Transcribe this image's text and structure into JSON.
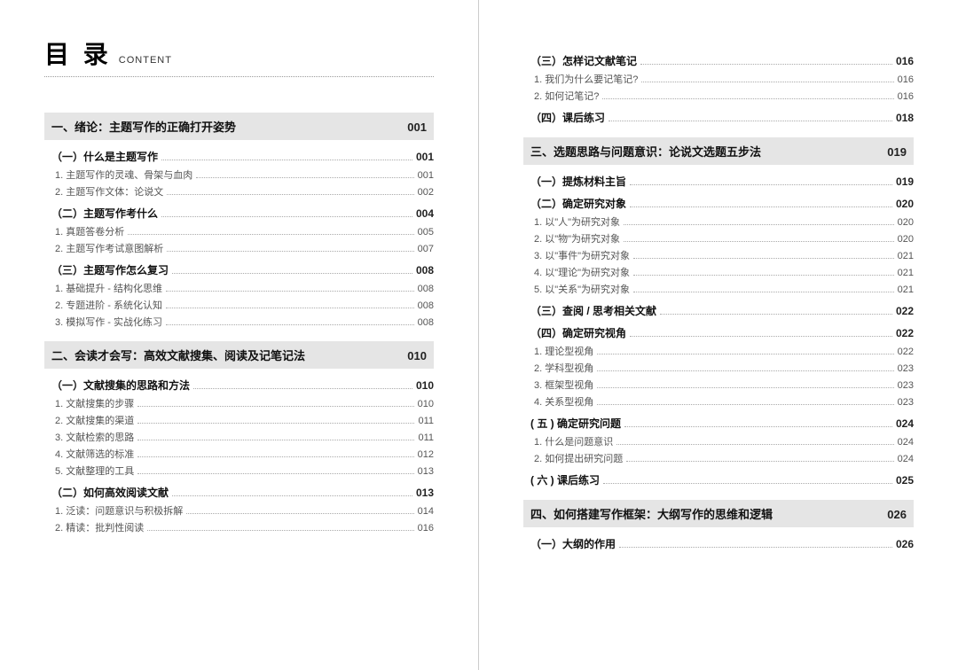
{
  "title": {
    "main": "目 录",
    "sub": "CONTENT"
  },
  "left": [
    {
      "type": "chapter",
      "label": "一、绪论：主题写作的正确打开姿势",
      "page": "001"
    },
    {
      "type": "section",
      "label": "（一）什么是主题写作",
      "page": "001"
    },
    {
      "type": "item",
      "label": "1. 主题写作的灵魂、骨架与血肉",
      "page": "001"
    },
    {
      "type": "item",
      "label": "2. 主题写作文体：论说文",
      "page": "002"
    },
    {
      "type": "section",
      "label": "（二）主题写作考什么",
      "page": "004"
    },
    {
      "type": "item",
      "label": "1. 真题答卷分析",
      "page": "005"
    },
    {
      "type": "item",
      "label": "2. 主题写作考试意图解析",
      "page": "007"
    },
    {
      "type": "section",
      "label": "（三）主题写作怎么复习",
      "page": "008"
    },
    {
      "type": "item",
      "label": "1. 基础提升 - 结构化思维",
      "page": "008"
    },
    {
      "type": "item",
      "label": "2. 专题进阶 - 系统化认知",
      "page": "008"
    },
    {
      "type": "item",
      "label": "3. 模拟写作 - 实战化练习",
      "page": "008"
    },
    {
      "type": "chapter",
      "label": "二、会读才会写：高效文献搜集、阅读及记笔记法",
      "page": "010"
    },
    {
      "type": "section",
      "label": "（一）文献搜集的思路和方法",
      "page": "010"
    },
    {
      "type": "item",
      "label": "1. 文献搜集的步骤",
      "page": "010"
    },
    {
      "type": "item",
      "label": "2. 文献搜集的渠道",
      "page": "011"
    },
    {
      "type": "item",
      "label": "3. 文献检索的思路",
      "page": "011"
    },
    {
      "type": "item",
      "label": "4. 文献筛选的标准",
      "page": "012"
    },
    {
      "type": "item",
      "label": "5. 文献整理的工具",
      "page": "013"
    },
    {
      "type": "section",
      "label": "（二）如何高效阅读文献",
      "page": "013"
    },
    {
      "type": "item",
      "label": "1. 泛读：问题意识与积极拆解",
      "page": "014"
    },
    {
      "type": "item",
      "label": "2. 精读：批判性阅读",
      "page": "016"
    }
  ],
  "right": [
    {
      "type": "section",
      "label": "（三）怎样记文献笔记",
      "page": "016"
    },
    {
      "type": "item",
      "label": "1. 我们为什么要记笔记?",
      "page": "016"
    },
    {
      "type": "item",
      "label": "2. 如何记笔记?",
      "page": "016"
    },
    {
      "type": "section",
      "label": "（四）课后练习",
      "page": "018"
    },
    {
      "type": "chapter",
      "label": "三、选题思路与问题意识：论说文选题五步法",
      "page": "019"
    },
    {
      "type": "section",
      "label": "（一）提炼材料主旨",
      "page": "019"
    },
    {
      "type": "section",
      "label": "（二）确定研究对象",
      "page": "020"
    },
    {
      "type": "item",
      "label": "1. 以\"人\"为研究对象",
      "page": "020"
    },
    {
      "type": "item",
      "label": "2. 以\"物\"为研究对象",
      "page": "020"
    },
    {
      "type": "item",
      "label": "3. 以\"事件\"为研究对象",
      "page": "021"
    },
    {
      "type": "item",
      "label": "4. 以\"理论\"为研究对象",
      "page": "021"
    },
    {
      "type": "item",
      "label": "5. 以\"关系\"为研究对象",
      "page": "021"
    },
    {
      "type": "section",
      "label": "（三）查阅 / 思考相关文献",
      "page": "022"
    },
    {
      "type": "section",
      "label": "（四）确定研究视角",
      "page": "022"
    },
    {
      "type": "item",
      "label": "1. 理论型视角",
      "page": "022"
    },
    {
      "type": "item",
      "label": "2. 学科型视角",
      "page": "023"
    },
    {
      "type": "item",
      "label": "3. 框架型视角",
      "page": "023"
    },
    {
      "type": "item",
      "label": "4. 关系型视角",
      "page": "023"
    },
    {
      "type": "section",
      "label": "( 五 ) 确定研究问题",
      "page": "024"
    },
    {
      "type": "item",
      "label": "1. 什么是问题意识",
      "page": "024"
    },
    {
      "type": "item",
      "label": "2. 如何提出研究问题",
      "page": "024"
    },
    {
      "type": "section",
      "label": "( 六 ) 课后练习",
      "page": "025"
    },
    {
      "type": "chapter",
      "label": "四、如何搭建写作框架：大纲写作的思维和逻辑",
      "page": "026"
    },
    {
      "type": "section",
      "label": "（一）大纲的作用",
      "page": "026"
    }
  ]
}
